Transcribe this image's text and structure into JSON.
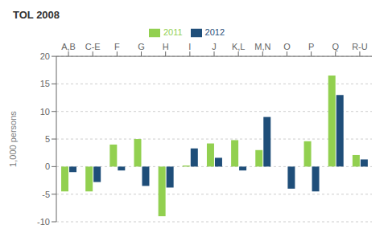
{
  "chart_data": {
    "type": "bar",
    "title": "TOL 2008",
    "categories": [
      "A,B",
      "C-E",
      "F",
      "G",
      "H",
      "I",
      "J",
      "K,L",
      "M,N",
      "O",
      "P",
      "Q",
      "R-U"
    ],
    "series": [
      {
        "name": "2011",
        "color": "#92d050",
        "values": [
          -4.5,
          -4.5,
          4.0,
          5.0,
          -9.0,
          0.2,
          4.2,
          4.8,
          3.0,
          0.0,
          4.6,
          16.5,
          2.1
        ]
      },
      {
        "name": "2012",
        "color": "#1f4e79",
        "values": [
          -1.0,
          -2.8,
          -0.7,
          -3.5,
          -3.8,
          3.3,
          1.6,
          -0.7,
          9.0,
          -4.0,
          -4.5,
          13.0,
          1.3
        ]
      }
    ],
    "ylabel": "1,000 persons",
    "ylim": [
      -10,
      20
    ],
    "yticks": [
      -10,
      -5,
      0,
      5,
      10,
      15,
      20
    ],
    "grid": true,
    "legend": "top"
  }
}
